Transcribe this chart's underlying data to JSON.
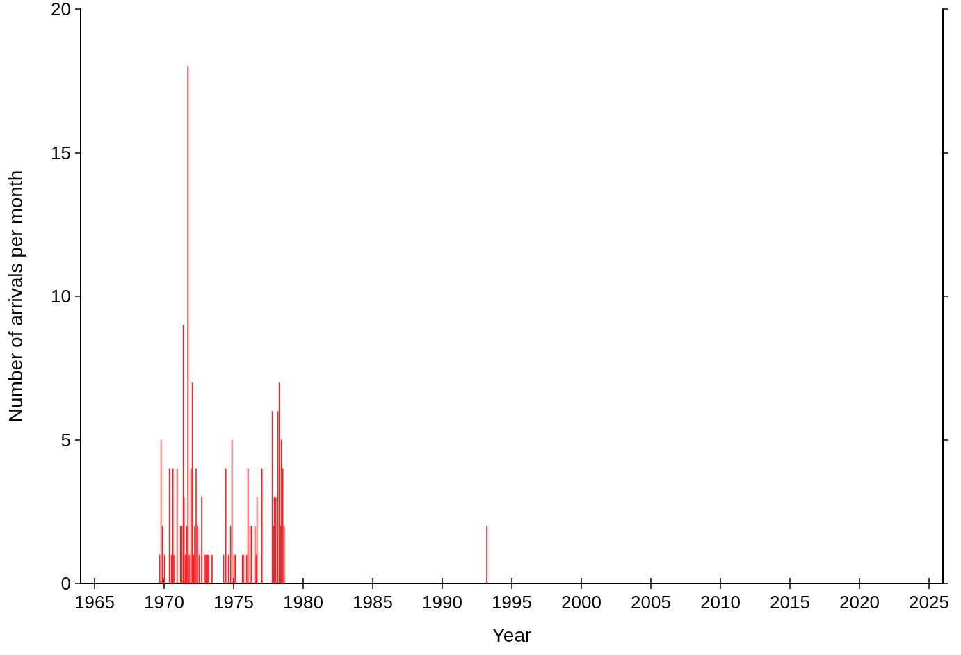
{
  "chart_data": {
    "type": "bar",
    "xlabel": "Year",
    "ylabel": "Number of arrivals per month",
    "x": [
      1969.68,
      1969.78,
      1969.88,
      1970.03,
      1970.38,
      1970.53,
      1970.63,
      1970.7,
      1970.93,
      1971.18,
      1971.28,
      1971.38,
      1971.43,
      1971.53,
      1971.63,
      1971.71,
      1971.8,
      1971.93,
      1972.03,
      1972.13,
      1972.2,
      1972.3,
      1972.4,
      1972.53,
      1972.7,
      1972.95,
      1973.03,
      1973.12,
      1973.2,
      1973.45,
      1974.28,
      1974.43,
      1974.63,
      1974.78,
      1974.88,
      1975.03,
      1975.13,
      1975.63,
      1975.7,
      1975.93,
      1976.03,
      1976.18,
      1976.28,
      1976.53,
      1976.62,
      1976.68,
      1977.03,
      1977.78,
      1977.87,
      1977.93,
      1978.03,
      1978.18,
      1978.28,
      1978.38,
      1978.43,
      1978.53,
      1978.63,
      1993.2
    ],
    "values": [
      1,
      5,
      2,
      1,
      4,
      1,
      4,
      1,
      4,
      2,
      2,
      9,
      3,
      1,
      2,
      18,
      1,
      4,
      7,
      1,
      2,
      4,
      2,
      1,
      3,
      1,
      1,
      1,
      1,
      1,
      1,
      4,
      1,
      2,
      5,
      1,
      1,
      1,
      1,
      1,
      4,
      2,
      2,
      2,
      1,
      3,
      4,
      6,
      2,
      3,
      3,
      6,
      7,
      2,
      5,
      4,
      2,
      2
    ],
    "color": "#ff2020",
    "xlim": [
      1964,
      2026
    ],
    "xticks": [
      1965,
      1970,
      1975,
      1980,
      1985,
      1990,
      1995,
      2000,
      2005,
      2010,
      2015,
      2020,
      2025
    ],
    "ylim": [
      0,
      20
    ],
    "yticks": [
      0,
      5,
      10,
      15,
      20
    ],
    "grid": false
  }
}
